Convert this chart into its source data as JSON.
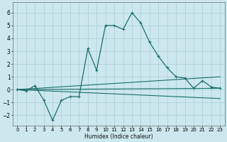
{
  "xlabel": "Humidex (Indice chaleur)",
  "bg_color": "#cce8ee",
  "line_color": "#1a6e6a",
  "grid_color": "#aacdd4",
  "xlim": [
    -0.5,
    23.5
  ],
  "ylim": [
    -2.8,
    6.8
  ],
  "xticks": [
    0,
    1,
    2,
    3,
    4,
    5,
    6,
    7,
    8,
    9,
    10,
    11,
    12,
    13,
    14,
    15,
    16,
    17,
    18,
    19,
    20,
    21,
    22,
    23
  ],
  "yticks": [
    -2,
    -1,
    0,
    1,
    2,
    3,
    4,
    5,
    6
  ],
  "series1_x": [
    0,
    1,
    2,
    3,
    4,
    5,
    6,
    7,
    8,
    9,
    10,
    11,
    12,
    13,
    14,
    15,
    16,
    17,
    18,
    19,
    20,
    21,
    22,
    23
  ],
  "series1_y": [
    0.0,
    -0.1,
    0.3,
    -0.8,
    -2.4,
    -0.85,
    -0.55,
    -0.55,
    3.2,
    1.5,
    5.0,
    5.0,
    4.7,
    6.0,
    5.2,
    3.7,
    2.6,
    1.7,
    1.0,
    0.9,
    0.1,
    0.7,
    0.2,
    0.1
  ],
  "series2_x": [
    0,
    23
  ],
  "series2_y": [
    0.0,
    1.0
  ],
  "series3_x": [
    0,
    23
  ],
  "series3_y": [
    0.0,
    -0.7
  ],
  "series4_x": [
    0,
    23
  ],
  "series4_y": [
    0.0,
    0.1
  ]
}
